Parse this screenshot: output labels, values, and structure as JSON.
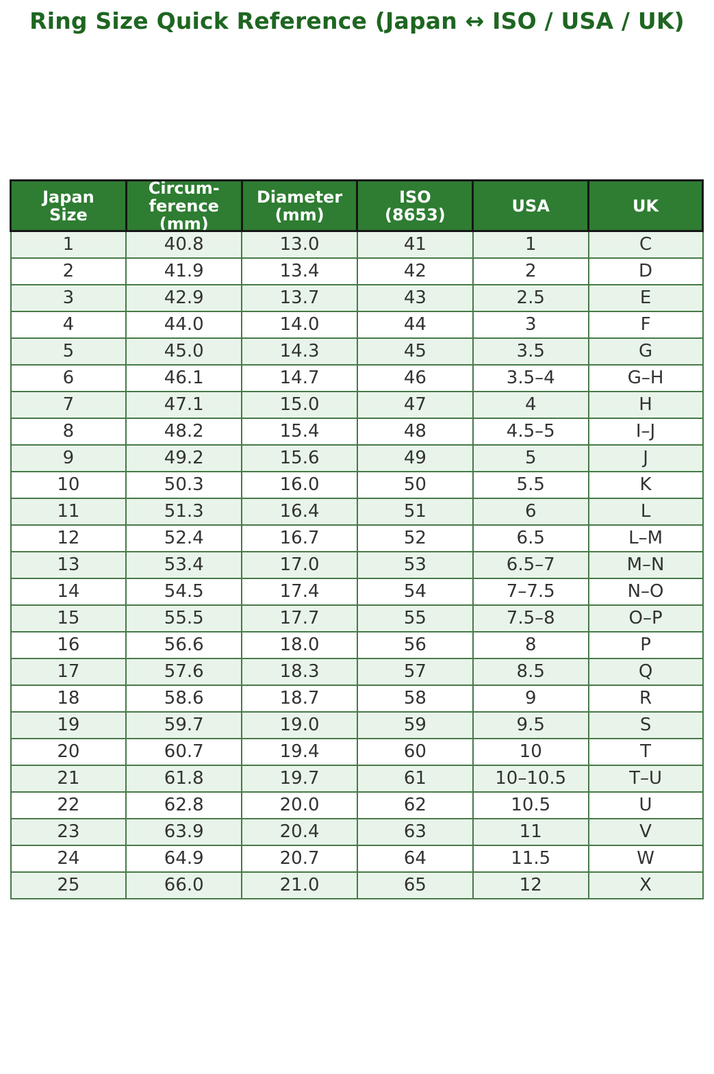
{
  "title": "Ring Size Quick Reference (Japan ↔ ISO / USA / UK)",
  "colors": {
    "title": "#1e6621",
    "header_bg": "#2e7d32",
    "header_text": "#ffffff",
    "header_border": "#161616",
    "cell_border": "#467a47",
    "stripe_bg": "#e8f4e9",
    "row_bg": "#ffffff",
    "cell_text": "#333333"
  },
  "table": {
    "headers": [
      {
        "id": "japan-size",
        "lines": [
          "Japan",
          "Size"
        ]
      },
      {
        "id": "circumference-mm",
        "lines": [
          "Circum-",
          "ference",
          "(mm)"
        ]
      },
      {
        "id": "diameter-mm",
        "lines": [
          "Diameter",
          "(mm)"
        ]
      },
      {
        "id": "iso-8653",
        "lines": [
          "ISO",
          "(8653)"
        ]
      },
      {
        "id": "usa",
        "lines": [
          "USA"
        ]
      },
      {
        "id": "uk",
        "lines": [
          "UK"
        ]
      }
    ],
    "rows": [
      [
        "1",
        "40.8",
        "13.0",
        "41",
        "1",
        "C"
      ],
      [
        "2",
        "41.9",
        "13.4",
        "42",
        "2",
        "D"
      ],
      [
        "3",
        "42.9",
        "13.7",
        "43",
        "2.5",
        "E"
      ],
      [
        "4",
        "44.0",
        "14.0",
        "44",
        "3",
        "F"
      ],
      [
        "5",
        "45.0",
        "14.3",
        "45",
        "3.5",
        "G"
      ],
      [
        "6",
        "46.1",
        "14.7",
        "46",
        "3.5–4",
        "G–H"
      ],
      [
        "7",
        "47.1",
        "15.0",
        "47",
        "4",
        "H"
      ],
      [
        "8",
        "48.2",
        "15.4",
        "48",
        "4.5–5",
        "I–J"
      ],
      [
        "9",
        "49.2",
        "15.6",
        "49",
        "5",
        "J"
      ],
      [
        "10",
        "50.3",
        "16.0",
        "50",
        "5.5",
        "K"
      ],
      [
        "11",
        "51.3",
        "16.4",
        "51",
        "6",
        "L"
      ],
      [
        "12",
        "52.4",
        "16.7",
        "52",
        "6.5",
        "L–M"
      ],
      [
        "13",
        "53.4",
        "17.0",
        "53",
        "6.5–7",
        "M–N"
      ],
      [
        "14",
        "54.5",
        "17.4",
        "54",
        "7–7.5",
        "N–O"
      ],
      [
        "15",
        "55.5",
        "17.7",
        "55",
        "7.5–8",
        "O–P"
      ],
      [
        "16",
        "56.6",
        "18.0",
        "56",
        "8",
        "P"
      ],
      [
        "17",
        "57.6",
        "18.3",
        "57",
        "8.5",
        "Q"
      ],
      [
        "18",
        "58.6",
        "18.7",
        "58",
        "9",
        "R"
      ],
      [
        "19",
        "59.7",
        "19.0",
        "59",
        "9.5",
        "S"
      ],
      [
        "20",
        "60.7",
        "19.4",
        "60",
        "10",
        "T"
      ],
      [
        "21",
        "61.8",
        "19.7",
        "61",
        "10–10.5",
        "T–U"
      ],
      [
        "22",
        "62.8",
        "20.0",
        "62",
        "10.5",
        "U"
      ],
      [
        "23",
        "63.9",
        "20.4",
        "63",
        "11",
        "V"
      ],
      [
        "24",
        "64.9",
        "20.7",
        "64",
        "11.5",
        "W"
      ],
      [
        "25",
        "66.0",
        "21.0",
        "65",
        "12",
        "X"
      ]
    ]
  }
}
